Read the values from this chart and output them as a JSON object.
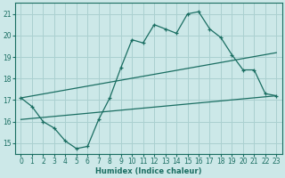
{
  "bg_color": "#cce8e8",
  "grid_color": "#aad0d0",
  "line_color": "#1a6e62",
  "xlabel": "Humidex (Indice chaleur)",
  "xlim": [
    -0.5,
    23.5
  ],
  "ylim": [
    14.5,
    21.5
  ],
  "yticks": [
    15,
    16,
    17,
    18,
    19,
    20,
    21
  ],
  "xticks": [
    0,
    1,
    2,
    3,
    4,
    5,
    6,
    7,
    8,
    9,
    10,
    11,
    12,
    13,
    14,
    15,
    16,
    17,
    18,
    19,
    20,
    21,
    22,
    23
  ],
  "line1_x": [
    0,
    1,
    2,
    3,
    4,
    5,
    6,
    7,
    8,
    9,
    10,
    11,
    12,
    13,
    14,
    15,
    16,
    17,
    18,
    19,
    20,
    21,
    22,
    23
  ],
  "line1_y": [
    17.1,
    16.7,
    16.0,
    15.7,
    15.1,
    14.75,
    14.85,
    16.1,
    17.1,
    18.5,
    19.8,
    19.65,
    20.5,
    20.3,
    20.1,
    21.0,
    21.1,
    20.3,
    19.9,
    19.1,
    18.4,
    18.4,
    17.3,
    17.2
  ],
  "line2_x": [
    0,
    23
  ],
  "line2_y": [
    16.1,
    17.2
  ],
  "line3_x": [
    0,
    23
  ],
  "line3_y": [
    17.1,
    19.2
  ]
}
